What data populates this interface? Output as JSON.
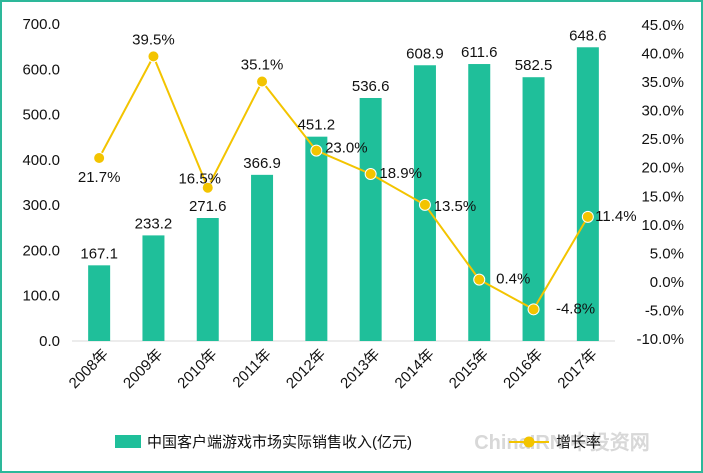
{
  "chart_data": {
    "type": "bar+line",
    "categories": [
      "2008年",
      "2009年",
      "2010年",
      "2011年",
      "2012年",
      "2013年",
      "2014年",
      "2015年",
      "2016年",
      "2017年"
    ],
    "series": [
      {
        "name": "中国客户端游戏市场实际销售收入(亿元)",
        "type": "bar",
        "axis": "left",
        "values": [
          167.1,
          233.2,
          271.6,
          366.9,
          451.2,
          536.6,
          608.9,
          611.6,
          582.5,
          648.6
        ],
        "labels": [
          "167.1",
          "233.2",
          "271.6",
          "366.9",
          "451.2",
          "536.6",
          "608.9",
          "611.6",
          "582.5",
          "648.6"
        ]
      },
      {
        "name": "增长率",
        "type": "line",
        "axis": "right",
        "values": [
          21.7,
          39.5,
          16.5,
          35.1,
          23.0,
          18.9,
          13.5,
          0.4,
          -4.8,
          11.4
        ],
        "labels": [
          "21.7%",
          "39.5%",
          "16.5%",
          "35.1%",
          "23.0%",
          "18.9%",
          "13.5%",
          "0.4%",
          "-4.8%",
          "11.4%"
        ]
      }
    ],
    "y_left": {
      "range": [
        0,
        700
      ],
      "ticks": [
        0,
        100,
        200,
        300,
        400,
        500,
        600,
        700
      ],
      "tick_labels": [
        "0.0",
        "100.0",
        "200.0",
        "300.0",
        "400.0",
        "500.0",
        "600.0",
        "700.0"
      ]
    },
    "y_right": {
      "range": [
        -10,
        45
      ],
      "ticks": [
        -10,
        -5,
        0,
        5,
        10,
        15,
        20,
        25,
        30,
        35,
        40,
        45
      ],
      "tick_labels": [
        "-10.0%",
        "-5.0%",
        "0.0%",
        "5.0%",
        "10.0%",
        "15.0%",
        "20.0%",
        "25.0%",
        "30.0%",
        "35.0%",
        "40.0%",
        "45.0%"
      ]
    },
    "grid": false,
    "legend_position": "bottom",
    "colors": {
      "bar": "#1fbf9a",
      "line": "#f3c400",
      "marker": "#f3c400",
      "frame": "#2db89a"
    }
  },
  "watermark": "ChinaIRN 中投资网"
}
